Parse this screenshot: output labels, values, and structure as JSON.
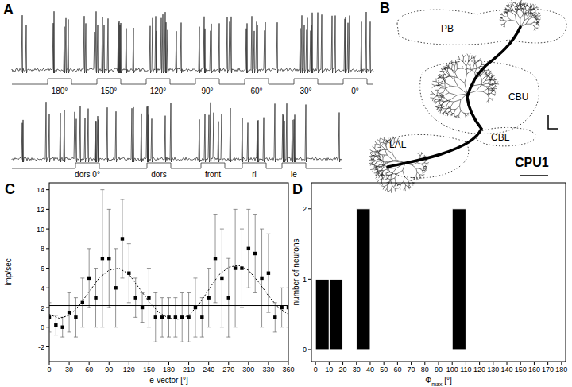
{
  "panel_a": {
    "label": "A",
    "stimuli_1": [
      "180°",
      "150°",
      "120°",
      "90°",
      "60°",
      "30°",
      "0°"
    ],
    "stimuli_2": [
      "dors 0°",
      "dors",
      "front",
      "ri",
      "le"
    ]
  },
  "panel_b": {
    "label": "B",
    "regions": [
      "PB",
      "CBU",
      "CBL",
      "LAL"
    ],
    "neuron": "CPU1"
  },
  "chart_data": [
    {
      "type": "scatter",
      "title": "C",
      "x_label": "e-vector [°]",
      "y_label": "imp/sec",
      "xlim": [
        0,
        360
      ],
      "ylim": [
        -3.5,
        14.7
      ],
      "xticks": [
        0,
        30,
        60,
        90,
        120,
        150,
        180,
        210,
        240,
        270,
        300,
        330,
        360
      ],
      "yticks": [
        -2,
        0,
        2,
        4,
        6,
        8,
        10,
        12,
        14
      ],
      "series": [
        {
          "type": "scatter",
          "marker": "square",
          "color": "#000000",
          "x": [
            0,
            10,
            20,
            30,
            40,
            50,
            60,
            70,
            80,
            90,
            100,
            110,
            120,
            130,
            140,
            150,
            160,
            170,
            180,
            190,
            200,
            210,
            220,
            230,
            240,
            250,
            260,
            270,
            280,
            290,
            300,
            310,
            320,
            330,
            340,
            350,
            360
          ],
          "values": [
            1,
            0.2,
            0,
            1.5,
            1,
            2.5,
            5,
            3,
            7,
            7,
            4,
            9,
            5.5,
            3,
            2,
            3,
            1,
            1,
            1,
            1,
            1,
            1,
            2,
            1,
            3,
            7,
            5,
            3,
            6,
            6,
            8,
            7.5,
            5,
            5.5,
            1,
            2,
            2
          ],
          "errors": [
            1.5,
            1,
            1,
            2,
            2,
            2.5,
            3,
            3,
            7,
            5,
            4,
            4,
            3,
            2,
            1.5,
            3,
            2.5,
            2,
            2,
            2,
            2.5,
            2.5,
            3,
            2,
            3,
            4.5,
            5,
            4,
            6,
            4,
            4,
            4,
            5,
            4,
            1.5,
            2,
            2
          ]
        },
        {
          "type": "line",
          "line_style": "dashed",
          "color": "#000000",
          "x": [
            0,
            15,
            30,
            45,
            60,
            75,
            90,
            105,
            120,
            135,
            150,
            165,
            180,
            195,
            210,
            225,
            240,
            255,
            270,
            285,
            300,
            315,
            330,
            345,
            360
          ],
          "values": [
            1.3,
            0.9,
            1.2,
            2.2,
            3.6,
            5,
            5.8,
            6,
            5.4,
            4,
            2.6,
            1.5,
            0.9,
            0.8,
            1.2,
            2.3,
            3.8,
            5.3,
            6.1,
            6.3,
            5.8,
            4.6,
            3.2,
            2,
            1.3
          ]
        },
        {
          "type": "line",
          "line_style": "solid",
          "color": "#000000",
          "x": [
            0,
            360
          ],
          "values": [
            2.2,
            2.2
          ]
        }
      ]
    },
    {
      "type": "histogram",
      "title": "D",
      "x_label": [
        "Φ",
        "max",
        " [°]"
      ],
      "y_label": "number of neurons",
      "xlim": [
        -3,
        183
      ],
      "ylim": [
        -0.17,
        2.37
      ],
      "xticks": [
        0,
        10,
        20,
        30,
        40,
        50,
        60,
        70,
        80,
        90,
        100,
        110,
        120,
        130,
        140,
        150,
        160,
        170,
        180
      ],
      "yticks": [
        0,
        1,
        2
      ],
      "color": "#000000",
      "bins": [
        0,
        10,
        20,
        30,
        40,
        50,
        60,
        70,
        80,
        90,
        100,
        110,
        120,
        130,
        140,
        150,
        160,
        170,
        180
      ],
      "values": [
        1,
        1,
        0,
        2,
        0,
        0,
        0,
        0,
        0,
        0,
        2,
        0,
        0,
        0,
        0,
        0,
        0,
        0
      ]
    }
  ]
}
